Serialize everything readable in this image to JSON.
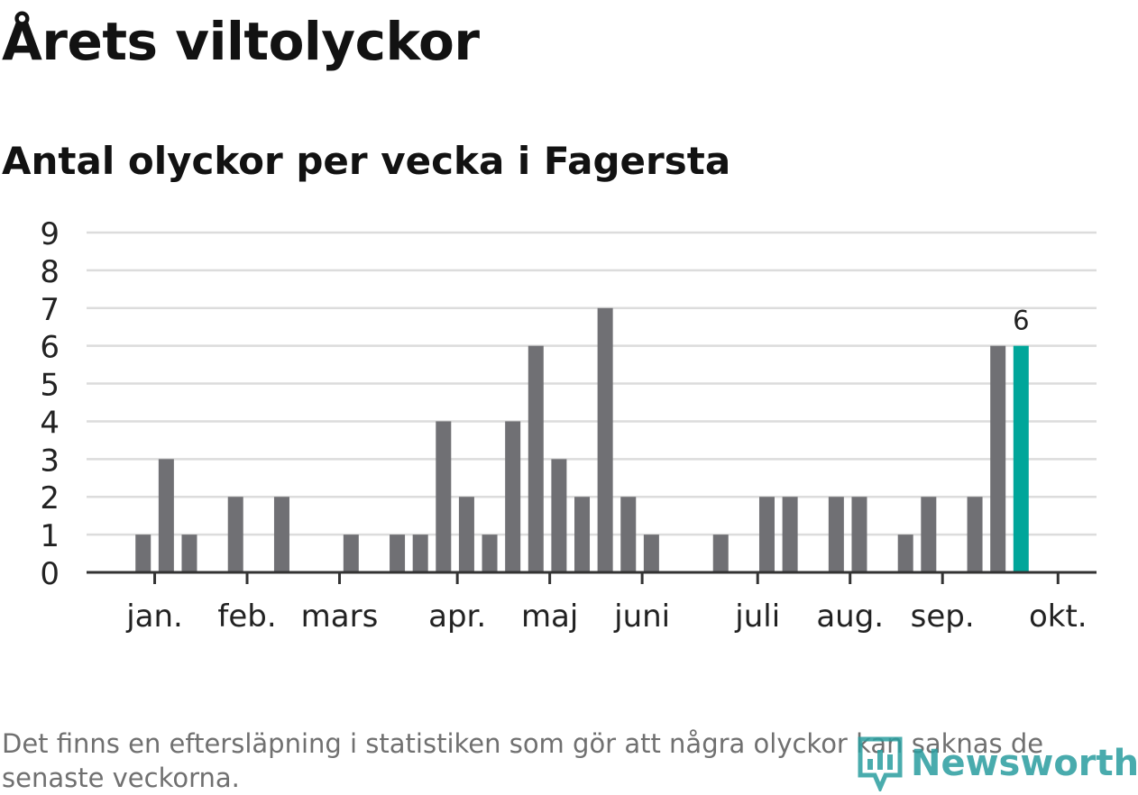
{
  "title": "Årets viltolyckor",
  "subtitle": "Antal olyckor per vecka i Fagersta",
  "footnote": "Det finns en eftersläpning i statistiken som gör att några olyckor kan saknas de senaste veckorna.",
  "logo_text": "Newsworthy",
  "colors": {
    "bar": "#707074",
    "highlight": "#00a69a",
    "grid": "#dcdcdc",
    "axis": "#333333",
    "text": "#222222",
    "logo": "#2a9d9f"
  },
  "chart_data": {
    "type": "bar",
    "ylim": [
      0,
      9
    ],
    "yticks": [
      0,
      1,
      2,
      3,
      4,
      5,
      6,
      7,
      8,
      9
    ],
    "grid": true,
    "x_weeks": [
      1,
      2,
      3,
      4,
      5,
      6,
      7,
      8,
      9,
      10,
      11,
      12,
      13,
      14,
      15,
      16,
      17,
      18,
      19,
      20,
      21,
      22,
      23,
      24,
      25,
      26,
      27,
      28,
      29,
      30,
      31,
      32,
      33,
      34,
      35,
      36,
      37,
      38,
      39,
      40,
      41
    ],
    "values": [
      0,
      0,
      1,
      3,
      1,
      0,
      2,
      0,
      2,
      0,
      0,
      1,
      0,
      1,
      1,
      4,
      2,
      1,
      4,
      6,
      3,
      2,
      7,
      2,
      1,
      0,
      0,
      1,
      0,
      2,
      2,
      0,
      2,
      2,
      0,
      1,
      2,
      0,
      2,
      6,
      6
    ],
    "highlight_last": true,
    "highlight_label": "6",
    "month_ticks": [
      {
        "label": "jan.",
        "week": 3.5
      },
      {
        "label": "feb.",
        "week": 7.5
      },
      {
        "label": "mars",
        "week": 11.5
      },
      {
        "label": "apr.",
        "week": 16.6
      },
      {
        "label": "maj",
        "week": 20.6
      },
      {
        "label": "juni",
        "week": 24.6
      },
      {
        "label": "juli",
        "week": 29.6
      },
      {
        "label": "aug.",
        "week": 33.6
      },
      {
        "label": "sep.",
        "week": 37.6
      },
      {
        "label": "okt.",
        "week": 42.6
      }
    ]
  }
}
